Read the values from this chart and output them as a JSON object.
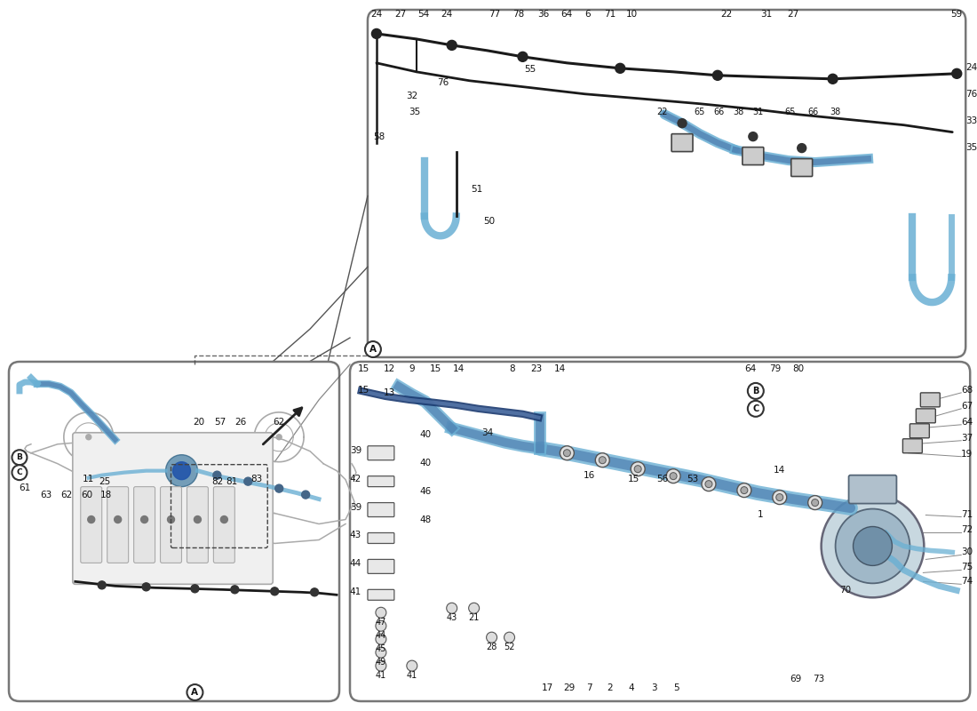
{
  "bg_color": "#ffffff",
  "line_dark": "#1a1a1a",
  "line_blue": "#4a7aad",
  "line_blue2": "#6ab0d4",
  "watermark_color": "#c8d8e8",
  "panel_edge": "#777777",
  "car_color": "#aaaaaa",
  "top_panel_labels_top": [
    "24",
    "27",
    "54",
    "24",
    "77",
    "78",
    "36",
    "64",
    "6",
    "71",
    "10",
    "22",
    "31",
    "27",
    "59"
  ],
  "top_panel_labels_right": [
    "24",
    "76",
    "33",
    "35"
  ],
  "bl_labels": [
    "62",
    "26",
    "57",
    "20",
    "83",
    "81",
    "82",
    "11",
    "25",
    "61",
    "63",
    "62",
    "60",
    "18"
  ],
  "br_stacked_left": [
    "39",
    "42",
    "39",
    "43",
    "44",
    "41"
  ],
  "br_col2": [
    "40",
    "40",
    "46",
    "48"
  ]
}
